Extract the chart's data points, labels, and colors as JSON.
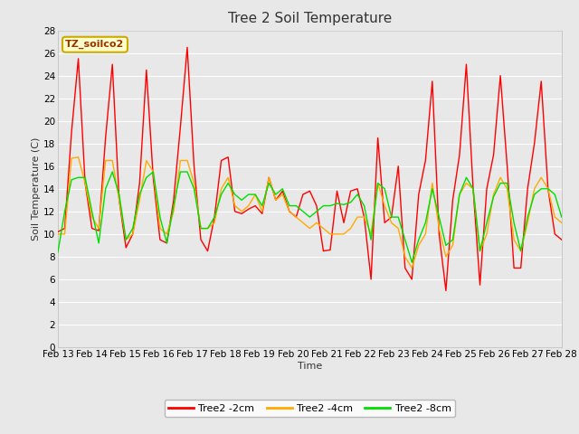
{
  "title": "Tree 2 Soil Temperature",
  "xlabel": "Time",
  "ylabel": "Soil Temperature (C)",
  "ylim": [
    0,
    28
  ],
  "yticks": [
    0,
    2,
    4,
    6,
    8,
    10,
    12,
    14,
    16,
    18,
    20,
    22,
    24,
    26,
    28
  ],
  "x_labels": [
    "Feb 13",
    "Feb 14",
    "Feb 15",
    "Feb 16",
    "Feb 17",
    "Feb 18",
    "Feb 19",
    "Feb 20",
    "Feb 21",
    "Feb 22",
    "Feb 23",
    "Feb 24",
    "Feb 25",
    "Feb 26",
    "Feb 27",
    "Feb 28"
  ],
  "legend_label": "TZ_soilco2",
  "series_labels": [
    "Tree2 -2cm",
    "Tree2 -4cm",
    "Tree2 -8cm"
  ],
  "series_colors": [
    "#ff0000",
    "#ffaa00",
    "#00dd00"
  ],
  "figure_bg_color": "#e8e8e8",
  "plot_bg_color": "#e8e8e8",
  "grid_color": "#ffffff",
  "title_fontsize": 11,
  "axis_fontsize": 8,
  "tick_fontsize": 7.5,
  "legend_box_facecolor": "#ffffcc",
  "legend_box_edgecolor": "#ccaa00",
  "legend_text_color": "#993300",
  "tree2_2cm": [
    10.2,
    10.5,
    19.0,
    25.5,
    14.5,
    10.5,
    10.3,
    18.5,
    25.0,
    13.0,
    8.8,
    10.0,
    14.5,
    24.5,
    15.0,
    9.5,
    9.2,
    13.0,
    19.5,
    26.5,
    16.0,
    9.5,
    8.5,
    11.5,
    16.5,
    16.8,
    12.0,
    11.8,
    12.2,
    12.5,
    11.8,
    15.0,
    13.0,
    13.8,
    12.0,
    11.5,
    13.5,
    13.8,
    12.5,
    8.5,
    8.6,
    13.8,
    11.0,
    13.8,
    14.0,
    11.5,
    6.0,
    18.5,
    11.0,
    11.5,
    16.0,
    7.0,
    6.0,
    13.5,
    16.5,
    23.5,
    10.0,
    5.0,
    13.0,
    17.0,
    25.0,
    14.0,
    5.5,
    14.0,
    17.0,
    24.0,
    16.0,
    7.0,
    7.0,
    14.0,
    18.0,
    23.5,
    14.0,
    10.0,
    9.5
  ],
  "tree2_4cm": [
    10.0,
    10.0,
    16.7,
    16.8,
    14.5,
    11.5,
    10.5,
    16.5,
    16.5,
    13.0,
    9.5,
    10.0,
    13.0,
    16.5,
    15.5,
    10.5,
    10.0,
    12.0,
    16.5,
    16.5,
    14.5,
    10.5,
    10.5,
    11.0,
    14.0,
    15.0,
    12.5,
    12.0,
    12.5,
    13.5,
    12.0,
    15.0,
    13.0,
    13.5,
    12.0,
    11.5,
    11.0,
    10.5,
    11.0,
    10.5,
    10.0,
    10.0,
    10.0,
    10.5,
    11.5,
    11.5,
    10.0,
    14.5,
    12.5,
    11.0,
    10.5,
    8.0,
    7.0,
    9.0,
    10.0,
    14.5,
    10.5,
    8.0,
    9.0,
    13.5,
    14.5,
    14.0,
    8.5,
    10.0,
    13.5,
    15.0,
    14.0,
    9.5,
    8.5,
    11.0,
    14.0,
    15.0,
    14.0,
    11.5,
    11.0
  ],
  "tree2_8cm": [
    8.4,
    12.0,
    14.8,
    15.0,
    15.0,
    12.0,
    9.2,
    14.0,
    15.5,
    13.5,
    9.5,
    10.5,
    13.5,
    15.0,
    15.5,
    11.5,
    9.2,
    12.5,
    15.5,
    15.5,
    14.0,
    10.5,
    10.5,
    11.5,
    13.5,
    14.5,
    13.5,
    13.0,
    13.5,
    13.5,
    12.5,
    14.5,
    13.5,
    14.0,
    12.5,
    12.5,
    12.0,
    11.5,
    12.0,
    12.5,
    12.5,
    12.7,
    12.6,
    12.8,
    13.5,
    12.5,
    9.5,
    14.5,
    14.0,
    11.5,
    11.5,
    9.5,
    7.5,
    9.5,
    11.0,
    14.0,
    11.5,
    9.0,
    9.5,
    13.5,
    15.0,
    14.0,
    8.5,
    11.0,
    13.3,
    14.5,
    14.5,
    11.0,
    8.5,
    11.5,
    13.5,
    14.0,
    14.0,
    13.5,
    11.5
  ]
}
